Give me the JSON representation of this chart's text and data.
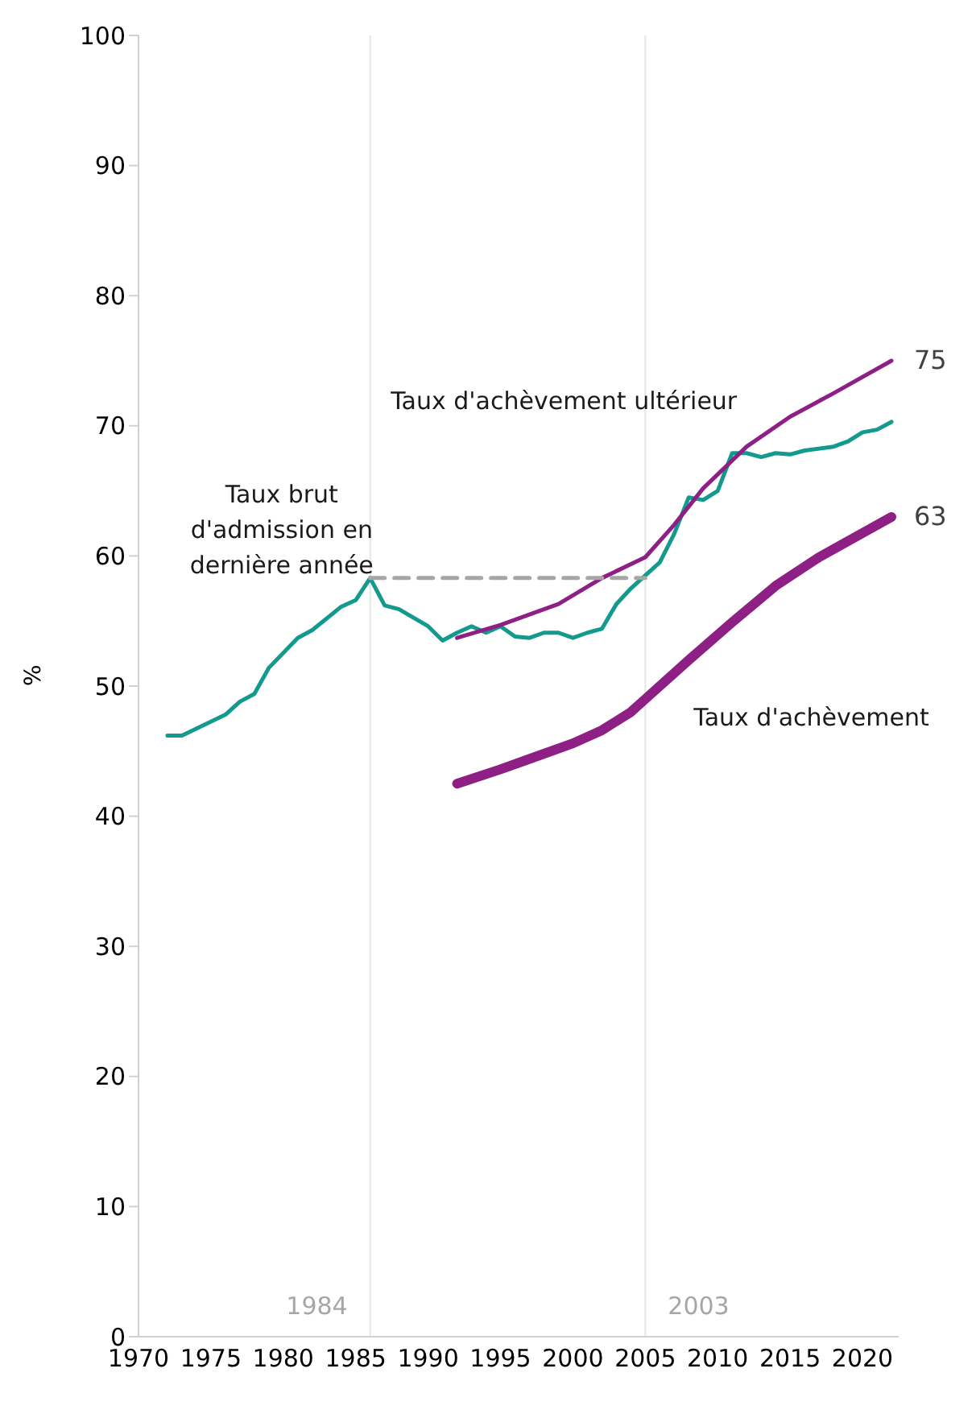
{
  "chart_data": {
    "type": "line",
    "ylabel": "%",
    "xlim": [
      1970,
      2022.5
    ],
    "xticks": [
      1970,
      1975,
      1980,
      1985,
      1990,
      1995,
      2000,
      2005,
      2010,
      2015,
      2020
    ],
    "ylim": [
      0,
      100
    ],
    "yticks": [
      0,
      10,
      20,
      30,
      40,
      50,
      60,
      70,
      80,
      90,
      100
    ],
    "marker": "none",
    "annotations": [
      "1984",
      "2003"
    ],
    "ref_lines": [
      {
        "axis": "x",
        "value": 1986,
        "color": "#e6e6e6"
      },
      {
        "axis": "x",
        "value": 2005,
        "color": "#e6e6e6"
      }
    ],
    "series": [
      {
        "name": "Taux brut d'admission en dernière année",
        "color": "#139a8e",
        "x": [
          1972,
          1973,
          1976,
          1977,
          1978,
          1979,
          1981,
          1982,
          1984,
          1985,
          1986,
          1987,
          1988,
          1990,
          1991,
          1992,
          1993,
          1994,
          1995,
          1996,
          1997,
          1998,
          1999,
          2000,
          2001,
          2002,
          2003,
          2004,
          2005,
          2006,
          2007,
          2008,
          2009,
          2010,
          2011,
          2012,
          2013,
          2014,
          2015,
          2016,
          2018,
          2019,
          2020,
          2021,
          2022
        ],
        "values": [
          46.2,
          46.2,
          47.8,
          48.8,
          49.4,
          51.4,
          53.7,
          54.3,
          56.1,
          56.6,
          58.3,
          56.2,
          55.9,
          54.6,
          53.5,
          54.1,
          54.6,
          54.1,
          54.6,
          53.8,
          53.7,
          54.1,
          54.1,
          53.7,
          54.1,
          54.4,
          56.3,
          57.5,
          58.5,
          59.5,
          61.7,
          64.5,
          64.3,
          65.0,
          67.9,
          67.9,
          67.6,
          67.9,
          67.8,
          68.1,
          68.4,
          68.8,
          69.5,
          69.7,
          70.3
        ]
      },
      {
        "name": "Taux d'achèvement ultérieur",
        "color": "#8e1f85",
        "x": [
          1992,
          1995,
          1999,
          2002,
          2005,
          2007,
          2009,
          2012,
          2015,
          2018,
          2022
        ],
        "values": [
          53.7,
          54.7,
          56.3,
          58.3,
          59.9,
          62.4,
          65.2,
          68.4,
          70.7,
          72.5,
          75
        ],
        "value_labels": [
          null,
          null,
          null,
          null,
          null,
          null,
          null,
          null,
          null,
          null,
          "75"
        ]
      },
      {
        "name": "Taux d'achèvement",
        "color": "#8e1f85",
        "x": [
          1992,
          1995,
          1997,
          2000,
          2002,
          2004,
          2005,
          2008,
          2011,
          2014,
          2017,
          2022
        ],
        "values": [
          42.5,
          43.6,
          44.4,
          45.6,
          46.6,
          48.0,
          49.0,
          52.0,
          54.9,
          57.7,
          59.9,
          63
        ],
        "value_labels": [
          null,
          null,
          null,
          null,
          null,
          null,
          null,
          null,
          null,
          null,
          null,
          "63"
        ]
      },
      {
        "type": "line",
        "color": "#a6a6a6",
        "line_style": "dashed",
        "x": [
          1986,
          2005
        ],
        "values": [
          58.3,
          58.3
        ]
      }
    ]
  }
}
